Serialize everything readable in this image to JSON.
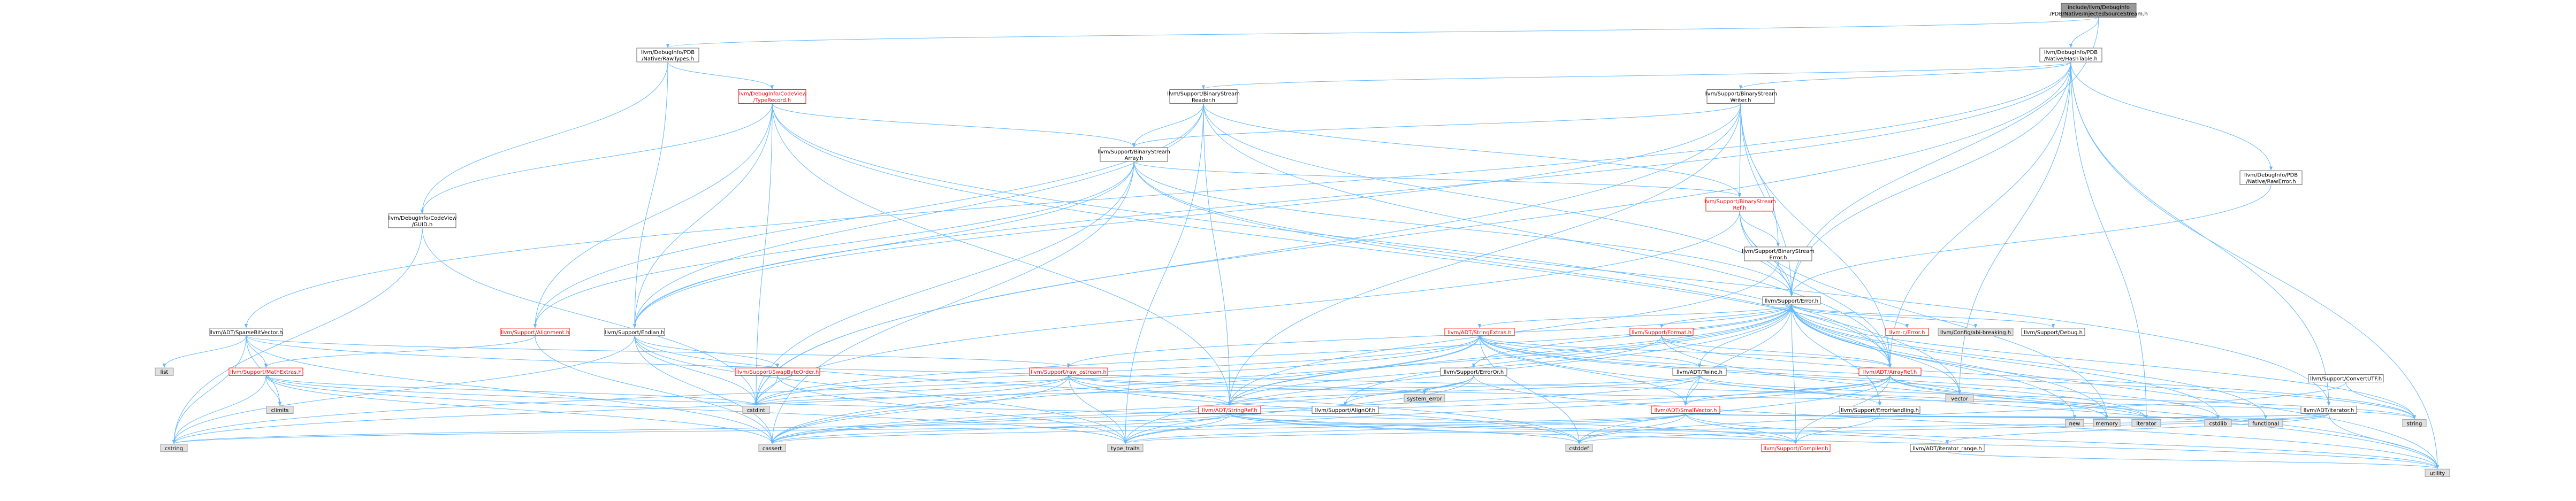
{
  "graph": {
    "nodes": [
      {
        "id": "root",
        "label": "include/llvm/DebugInfo\n/PDB/Native/InjectedSourceStream.h",
        "style": "root"
      },
      {
        "id": "rawtypes",
        "label": "llvm/DebugInfo/PDB\n/Native/RawTypes.h",
        "style": "white"
      },
      {
        "id": "hashtable",
        "label": "llvm/DebugInfo/PDB\n/Native/HashTable.h",
        "style": "white"
      },
      {
        "id": "typerecord",
        "label": "llvm/DebugInfo/CodeView\n/TypeRecord.h",
        "style": "red"
      },
      {
        "id": "bsreader",
        "label": "llvm/Support/BinaryStream\nReader.h",
        "style": "white"
      },
      {
        "id": "bswriter",
        "label": "llvm/Support/BinaryStream\nWriter.h",
        "style": "white"
      },
      {
        "id": "bsarray",
        "label": "llvm/Support/BinaryStream\nArray.h",
        "style": "white"
      },
      {
        "id": "bsref",
        "label": "llvm/Support/BinaryStream\nRef.h",
        "style": "red"
      },
      {
        "id": "rawerror",
        "label": "llvm/DebugInfo/PDB\n/Native/RawError.h",
        "style": "white"
      },
      {
        "id": "guid",
        "label": "llvm/DebugInfo/CodeView\n/GUID.h",
        "style": "white"
      },
      {
        "id": "bserror",
        "label": "llvm/Support/BinaryStream\nError.h",
        "style": "white"
      },
      {
        "id": "error",
        "label": "llvm/Support/Error.h",
        "style": "white"
      },
      {
        "id": "sparsebv",
        "label": "llvm/ADT/SparseBitVector.h",
        "style": "white"
      },
      {
        "id": "alignment",
        "label": "llvm/Support/Alignment.h",
        "style": "red"
      },
      {
        "id": "endian",
        "label": "llvm/Support/Endian.h",
        "style": "white"
      },
      {
        "id": "stringextras",
        "label": "llvm/ADT/StringExtras.h",
        "style": "red"
      },
      {
        "id": "format",
        "label": "llvm/Support/Format.h",
        "style": "red"
      },
      {
        "id": "cerror",
        "label": "llvm-c/Error.h",
        "style": "red"
      },
      {
        "id": "configbreak",
        "label": "llvm/Config/abi-breaking.h",
        "style": "gray"
      },
      {
        "id": "debug",
        "label": "llvm/Support/Debug.h",
        "style": "white"
      },
      {
        "id": "list",
        "label": "list",
        "style": "gray"
      },
      {
        "id": "mathextras",
        "label": "llvm/Support/MathExtras.h",
        "style": "red"
      },
      {
        "id": "swapbyte",
        "label": "llvm/Support/SwapByteOrder.h",
        "style": "red"
      },
      {
        "id": "rawostream",
        "label": "llvm/Support/raw_ostream.h",
        "style": "red"
      },
      {
        "id": "erroror",
        "label": "llvm/Support/ErrorOr.h",
        "style": "white"
      },
      {
        "id": "twine",
        "label": "llvm/ADT/Twine.h",
        "style": "white"
      },
      {
        "id": "arrayref",
        "label": "llvm/ADT/ArrayRef.h",
        "style": "red"
      },
      {
        "id": "climits",
        "label": "climits",
        "style": "gray"
      },
      {
        "id": "cstdint",
        "label": "cstdint",
        "style": "gray"
      },
      {
        "id": "stringref",
        "label": "llvm/ADT/StringRef.h",
        "style": "red"
      },
      {
        "id": "alignof",
        "label": "llvm/Support/AlignOf.h",
        "style": "white"
      },
      {
        "id": "systemerror",
        "label": "system_error",
        "style": "gray"
      },
      {
        "id": "smallvector",
        "label": "llvm/ADT/SmallVector.h",
        "style": "red"
      },
      {
        "id": "errhandling",
        "label": "llvm/Support/ErrorHandling.h",
        "style": "white"
      },
      {
        "id": "vector",
        "label": "vector",
        "style": "gray"
      },
      {
        "id": "adtiterator",
        "label": "llvm/ADT/iterator.h",
        "style": "white"
      },
      {
        "id": "convertutf",
        "label": "llvm/Support/ConvertUTF.h",
        "style": "white"
      },
      {
        "id": "cstring",
        "label": "cstring",
        "style": "gray"
      },
      {
        "id": "cassert",
        "label": "cassert",
        "style": "gray"
      },
      {
        "id": "typetraits",
        "label": "type_traits",
        "style": "gray"
      },
      {
        "id": "compiler",
        "label": "llvm/Support/Compiler.h",
        "style": "red"
      },
      {
        "id": "cstddef",
        "label": "cstddef",
        "style": "gray"
      },
      {
        "id": "iterrange",
        "label": "llvm/ADT/iterator_range.h",
        "style": "white"
      },
      {
        "id": "new",
        "label": "new",
        "style": "gray"
      },
      {
        "id": "memory",
        "label": "memory",
        "style": "gray"
      },
      {
        "id": "iterator",
        "label": "iterator",
        "style": "gray"
      },
      {
        "id": "cstdlib",
        "label": "cstdlib",
        "style": "gray"
      },
      {
        "id": "functional",
        "label": "functional",
        "style": "gray"
      },
      {
        "id": "string",
        "label": "string",
        "style": "gray"
      },
      {
        "id": "utility",
        "label": "utility",
        "style": "gray"
      }
    ],
    "edges": [
      [
        "root",
        "rawtypes"
      ],
      [
        "root",
        "hashtable"
      ],
      [
        "root",
        "error"
      ],
      [
        "rawtypes",
        "typerecord"
      ],
      [
        "rawtypes",
        "guid"
      ],
      [
        "rawtypes",
        "endian"
      ],
      [
        "hashtable",
        "sparsebv"
      ],
      [
        "hashtable",
        "arrayref"
      ],
      [
        "hashtable",
        "rawerror"
      ],
      [
        "hashtable",
        "bsreader"
      ],
      [
        "hashtable",
        "bswriter"
      ],
      [
        "hashtable",
        "endian"
      ],
      [
        "hashtable",
        "error"
      ],
      [
        "hashtable",
        "adtiterator"
      ],
      [
        "hashtable",
        "cstdint"
      ],
      [
        "hashtable",
        "iterator"
      ],
      [
        "hashtable",
        "utility"
      ],
      [
        "hashtable",
        "vector"
      ],
      [
        "typerecord",
        "bsarray"
      ],
      [
        "typerecord",
        "endian"
      ],
      [
        "typerecord",
        "guid"
      ],
      [
        "typerecord",
        "arrayref"
      ],
      [
        "typerecord",
        "stringref"
      ],
      [
        "typerecord",
        "cstdint"
      ],
      [
        "typerecord",
        "vector"
      ],
      [
        "typerecord",
        "alignment"
      ],
      [
        "bsreader",
        "bsarray"
      ],
      [
        "bsreader",
        "bsref"
      ],
      [
        "bsreader",
        "error"
      ],
      [
        "bsreader",
        "endian"
      ],
      [
        "bsreader",
        "arrayref"
      ],
      [
        "bsreader",
        "stringref"
      ],
      [
        "bsreader",
        "alignment"
      ],
      [
        "bsreader",
        "typetraits"
      ],
      [
        "bswriter",
        "bsarray"
      ],
      [
        "bswriter",
        "bsref"
      ],
      [
        "bswriter",
        "bserror"
      ],
      [
        "bswriter",
        "error"
      ],
      [
        "bswriter",
        "endian"
      ],
      [
        "bswriter",
        "arrayref"
      ],
      [
        "bswriter",
        "stringref"
      ],
      [
        "bswriter",
        "cstdint"
      ],
      [
        "bsarray",
        "bsref"
      ],
      [
        "bsarray",
        "error"
      ],
      [
        "bsarray",
        "arrayref"
      ],
      [
        "bsarray",
        "adtiterator"
      ],
      [
        "bsarray",
        "cassert"
      ],
      [
        "bsarray",
        "cstdint"
      ],
      [
        "bsarray",
        "alignment"
      ],
      [
        "bsarray",
        "endian"
      ],
      [
        "bsref",
        "bserror"
      ],
      [
        "bsref",
        "error"
      ],
      [
        "bsref",
        "arrayref"
      ],
      [
        "bsref",
        "cstdint"
      ],
      [
        "bsref",
        "memory"
      ],
      [
        "bsref",
        "optional_placeholder"
      ],
      [
        "rawerror",
        "error"
      ],
      [
        "guid",
        "cstdint"
      ],
      [
        "guid",
        "cstring"
      ],
      [
        "bserror",
        "error"
      ],
      [
        "bserror",
        "stringref"
      ],
      [
        "error",
        "stringextras"
      ],
      [
        "error",
        "format"
      ],
      [
        "error",
        "cerror"
      ],
      [
        "error",
        "configbreak"
      ],
      [
        "error",
        "debug"
      ],
      [
        "error",
        "twine"
      ],
      [
        "error",
        "erroror"
      ],
      [
        "error",
        "errhandling"
      ],
      [
        "error",
        "alignof"
      ],
      [
        "error",
        "compiler"
      ],
      [
        "error",
        "rawostream"
      ],
      [
        "error",
        "smallvector"
      ],
      [
        "error",
        "cassert"
      ],
      [
        "error",
        "cstdint"
      ],
      [
        "error",
        "cstdlib"
      ],
      [
        "error",
        "functional"
      ],
      [
        "error",
        "memory"
      ],
      [
        "error",
        "new"
      ],
      [
        "error",
        "string"
      ],
      [
        "error",
        "system_error_ph"
      ],
      [
        "error",
        "typetraits"
      ],
      [
        "error",
        "utility"
      ],
      [
        "error",
        "vector"
      ],
      [
        "error",
        "arrayref"
      ],
      [
        "error",
        "stringref"
      ],
      [
        "sparsebv",
        "list"
      ],
      [
        "sparsebv",
        "mathextras"
      ],
      [
        "sparsebv",
        "rawostream"
      ],
      [
        "sparsebv",
        "climits"
      ],
      [
        "sparsebv",
        "cassert"
      ],
      [
        "sparsebv",
        "cstring"
      ],
      [
        "sparsebv",
        "iterator"
      ],
      [
        "alignment",
        "mathextras"
      ],
      [
        "alignment",
        "cassert"
      ],
      [
        "endian",
        "swapbyte"
      ],
      [
        "endian",
        "cstddef"
      ],
      [
        "endian",
        "cstdint"
      ],
      [
        "endian",
        "typetraits"
      ],
      [
        "endian",
        "cassert"
      ],
      [
        "endian",
        "cstring"
      ],
      [
        "stringextras",
        "arrayref"
      ],
      [
        "stringextras",
        "smallvector"
      ],
      [
        "stringextras",
        "stringref"
      ],
      [
        "stringextras",
        "twine"
      ],
      [
        "stringextras",
        "cassert"
      ],
      [
        "stringextras",
        "cstddef"
      ],
      [
        "stringextras",
        "cstdint"
      ],
      [
        "stringextras",
        "cstdlib"
      ],
      [
        "stringextras",
        "cstring"
      ],
      [
        "stringextras",
        "iterator"
      ],
      [
        "stringextras",
        "string"
      ],
      [
        "stringextras",
        "utility"
      ],
      [
        "format",
        "arrayref"
      ],
      [
        "format",
        "stringref"
      ],
      [
        "format",
        "string"
      ],
      [
        "format",
        "utility"
      ],
      [
        "mathextras",
        "compiler"
      ],
      [
        "mathextras",
        "cassert"
      ],
      [
        "mathextras",
        "climits"
      ],
      [
        "mathextras",
        "cstdint"
      ],
      [
        "mathextras",
        "cstring"
      ],
      [
        "mathextras",
        "typetraits"
      ],
      [
        "swapbyte",
        "typetraits"
      ],
      [
        "swapbyte",
        "cstdint"
      ],
      [
        "rawostream",
        "stringref"
      ],
      [
        "rawostream",
        "cassert"
      ],
      [
        "rawostream",
        "cstddef"
      ],
      [
        "rawostream",
        "cstdint"
      ],
      [
        "rawostream",
        "cstring"
      ],
      [
        "rawostream",
        "string"
      ],
      [
        "rawostream",
        "systemerror"
      ],
      [
        "rawostream",
        "typetraits"
      ],
      [
        "erroror",
        "alignof"
      ],
      [
        "erroror",
        "cassert"
      ],
      [
        "erroror",
        "systemerror"
      ],
      [
        "erroror",
        "typetraits"
      ],
      [
        "erroror",
        "utility"
      ],
      [
        "twine",
        "smallvector"
      ],
      [
        "twine",
        "stringref"
      ],
      [
        "twine",
        "errhandling"
      ],
      [
        "twine",
        "cassert"
      ],
      [
        "twine",
        "cstdint"
      ],
      [
        "twine",
        "string"
      ],
      [
        "arrayref",
        "smallvector"
      ],
      [
        "arrayref",
        "compiler"
      ],
      [
        "arrayref",
        "cassert"
      ],
      [
        "arrayref",
        "cstddef"
      ],
      [
        "arrayref",
        "iterator"
      ],
      [
        "arrayref",
        "memory"
      ],
      [
        "arrayref",
        "typetraits"
      ],
      [
        "arrayref",
        "vector"
      ],
      [
        "stringref",
        "iterrange"
      ],
      [
        "stringref",
        "compiler"
      ],
      [
        "stringref",
        "cassert"
      ],
      [
        "stringref",
        "cstddef"
      ],
      [
        "stringref",
        "cstring"
      ],
      [
        "stringref",
        "typetraits"
      ],
      [
        "stringref",
        "utility"
      ],
      [
        "smallvector",
        "compiler"
      ],
      [
        "smallvector",
        "cassert"
      ],
      [
        "smallvector",
        "cstddef"
      ],
      [
        "smallvector",
        "cstdlib"
      ],
      [
        "smallvector",
        "cstring"
      ],
      [
        "smallvector",
        "functional"
      ],
      [
        "smallvector",
        "iterator"
      ],
      [
        "smallvector",
        "memory"
      ],
      [
        "smallvector",
        "new"
      ],
      [
        "smallvector",
        "typetraits"
      ],
      [
        "smallvector",
        "utility"
      ],
      [
        "errhandling",
        "compiler"
      ],
      [
        "adtiterator",
        "iterrange"
      ],
      [
        "adtiterator",
        "cstddef"
      ],
      [
        "adtiterator",
        "iterator"
      ],
      [
        "adtiterator",
        "typetraits"
      ],
      [
        "adtiterator",
        "utility"
      ],
      [
        "convertutf",
        "cstddef"
      ],
      [
        "convertutf",
        "string"
      ],
      [
        "iterrange",
        "utility"
      ]
    ]
  }
}
